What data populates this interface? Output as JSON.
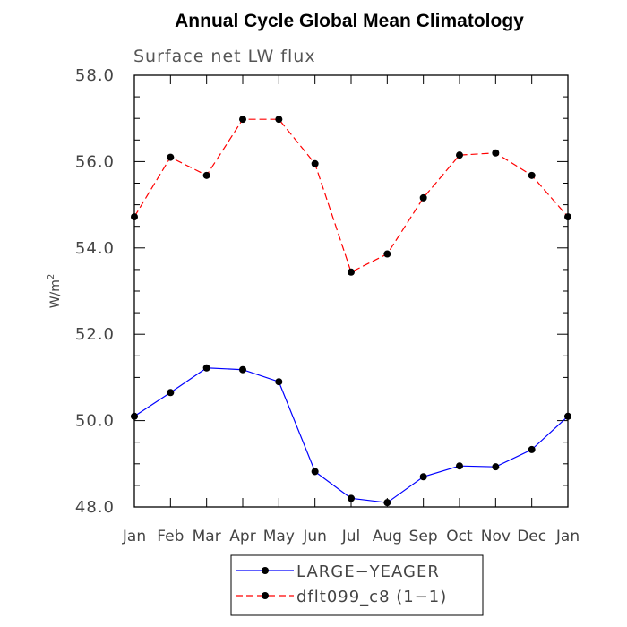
{
  "chart_data": {
    "type": "line",
    "title": "Annual Cycle Global Mean Climatology",
    "subtitle": "Surface net LW flux",
    "ylabel": "W/m",
    "ylabel_superscript": "2",
    "xlabel": "",
    "categories": [
      "Jan",
      "Feb",
      "Mar",
      "Apr",
      "May",
      "Jun",
      "Jul",
      "Aug",
      "Sep",
      "Oct",
      "Nov",
      "Dec",
      "Jan"
    ],
    "ylim": [
      48.0,
      58.0
    ],
    "yticks": [
      48.0,
      50.0,
      52.0,
      54.0,
      56.0,
      58.0
    ],
    "ytick_labels": [
      "48.0",
      "50.0",
      "52.0",
      "54.0",
      "56.0",
      "58.0"
    ],
    "yminor_step": 0.5,
    "legend_position": "bottom-center",
    "series": [
      {
        "name": "LARGE−YEAGER",
        "color": "#0000ff",
        "dash": "solid",
        "values": [
          50.1,
          50.65,
          51.22,
          51.18,
          50.9,
          48.82,
          48.2,
          48.1,
          48.7,
          48.95,
          48.93,
          49.33,
          50.1
        ]
      },
      {
        "name": "dflt099_c8 (1−1)",
        "color": "#ff0000",
        "dash": "dashed",
        "values": [
          54.72,
          56.1,
          55.68,
          56.98,
          56.98,
          55.95,
          53.44,
          53.86,
          55.16,
          56.15,
          56.2,
          55.68,
          54.72
        ]
      }
    ]
  }
}
